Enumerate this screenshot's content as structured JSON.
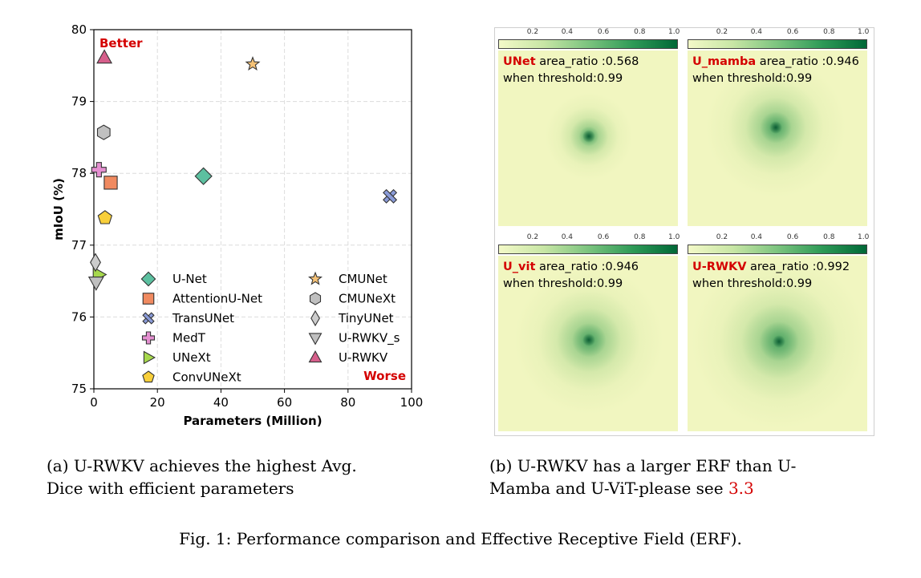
{
  "chart_data": {
    "type": "scatter",
    "xlabel": "Parameters (Million)",
    "ylabel": "mIoU (%)",
    "xlim": [
      0,
      100
    ],
    "ylim": [
      75,
      80
    ],
    "x_ticks": [
      "0",
      "20",
      "40",
      "60",
      "80",
      "100"
    ],
    "y_ticks": [
      "75",
      "76",
      "77",
      "78",
      "79",
      "80"
    ],
    "grid": true,
    "legend_position": "lower-right",
    "corner_labels": {
      "top_left": "Better",
      "bottom_right": "Worse"
    },
    "series": [
      {
        "name": "U-Net",
        "x": 34.5,
        "y": 77.96,
        "marker": "diamond",
        "color": "#5cc0a0"
      },
      {
        "name": "AttentionU-Net",
        "x": 5.3,
        "y": 77.87,
        "marker": "square",
        "color": "#f08a60"
      },
      {
        "name": "TransUNet",
        "x": 93.2,
        "y": 77.68,
        "marker": "x",
        "color": "#8a9bd8"
      },
      {
        "name": "MedT",
        "x": 1.6,
        "y": 78.05,
        "marker": "plus",
        "color": "#e48fd0"
      },
      {
        "name": "UNeXt",
        "x": 1.5,
        "y": 76.59,
        "marker": "triangle-right",
        "color": "#a6d84c"
      },
      {
        "name": "ConvUNeXt",
        "x": 3.5,
        "y": 77.38,
        "marker": "pentagon",
        "color": "#f8cf3a"
      },
      {
        "name": "CMUNet",
        "x": 50.0,
        "y": 79.52,
        "marker": "star",
        "color": "#f5c277"
      },
      {
        "name": "CMUNeXt",
        "x": 3.1,
        "y": 78.57,
        "marker": "hexagon",
        "color": "#c0c0c0"
      },
      {
        "name": "TinyUNet",
        "x": 0.5,
        "y": 76.76,
        "marker": "thin-diamond",
        "color": "#cccccc"
      },
      {
        "name": "U-RWKV_s",
        "x": 0.7,
        "y": 76.48,
        "marker": "triangle-down",
        "color": "#bfbfbf"
      },
      {
        "name": "U-RWKV",
        "x": 3.3,
        "y": 79.61,
        "marker": "triangle-up",
        "color": "#d65f8b"
      }
    ]
  },
  "erf": {
    "colorbar_ticks": [
      "0.2",
      "0.4",
      "0.6",
      "0.8",
      "1.0"
    ],
    "panels": [
      {
        "model": "UNet",
        "ratio_text": " area_ratio :0.568",
        "threshold_text": "when threshold:0.99",
        "spread": 0.5,
        "color": "#1b7a45"
      },
      {
        "model": "U_mamba",
        "ratio_text": " area_ratio :0.946",
        "threshold_text": "when threshold:0.99",
        "spread": 0.8,
        "color": "#1b7a45"
      },
      {
        "model": "U_vit",
        "ratio_text": " area_ratio :0.946",
        "threshold_text": "when threshold:0.99",
        "spread": 0.85,
        "color": "#1b7a45"
      },
      {
        "model": "U-RWKV",
        "ratio_text": " area_ratio :0.992",
        "threshold_text": "when threshold:0.99",
        "spread": 1.0,
        "color": "#1b7a45"
      }
    ]
  },
  "captions": {
    "a_line1": "(a) U-RWKV achieves the highest Avg.",
    "a_line2": "Dice with efficient parameters",
    "b_line1": "(b) U-RWKV has a larger ERF than U-",
    "b_line2_text": "Mamba and U-ViT-please see ",
    "b_line2_ref": "3.3",
    "figure": "Fig. 1: Performance comparison and Effective Receptive Field (ERF)."
  }
}
